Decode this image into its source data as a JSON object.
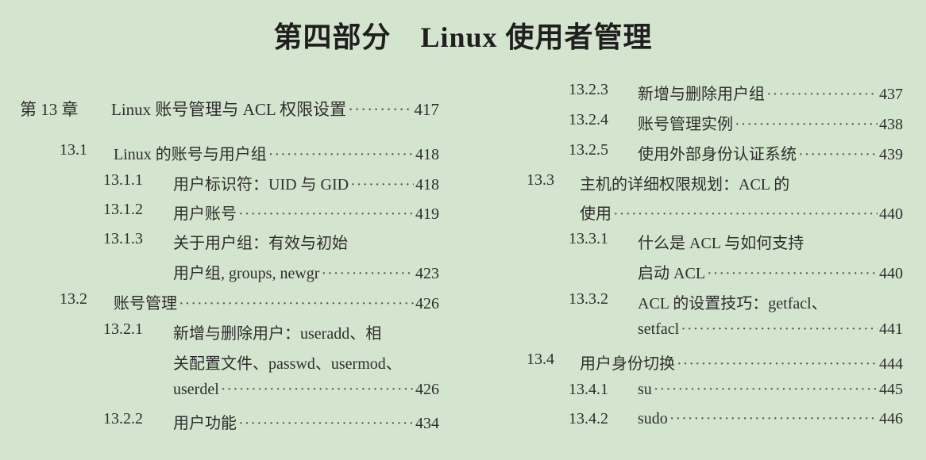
{
  "title": "第四部分　Linux 使用者管理",
  "left_column": [
    {
      "num": "第 13 章",
      "text": "Linux 账号管理与 ACL 权限设置",
      "page": "417",
      "level": 0
    },
    {
      "num": "13.1",
      "text": "Linux 的账号与用户组",
      "page": "418",
      "level": 1
    },
    {
      "num": "13.1.1",
      "text": "用户标识符：UID 与 GID",
      "page": "418",
      "level": 2
    },
    {
      "num": "13.1.2",
      "text": "用户账号",
      "page": "419",
      "level": 2
    },
    {
      "num": "13.1.3",
      "text": "关于用户组：有效与初始",
      "page": "",
      "level": 2
    },
    {
      "num": "",
      "text": "用户组, groups, newgr",
      "page": "423",
      "level": 2
    },
    {
      "num": "13.2",
      "text": "账号管理",
      "page": "426",
      "level": 1
    },
    {
      "num": "13.2.1",
      "text": "新增与删除用户：useradd、相",
      "page": "",
      "level": 2
    },
    {
      "num": "",
      "text": "关配置文件、passwd、usermod、",
      "page": "",
      "level": 2
    },
    {
      "num": "",
      "text": "userdel",
      "page": "426",
      "level": 2
    },
    {
      "num": "13.2.2",
      "text": "用户功能",
      "page": "434",
      "level": 2
    }
  ],
  "right_column": [
    {
      "num": "13.2.3",
      "text": "新增与删除用户组",
      "page": "437",
      "level": 2
    },
    {
      "num": "13.2.4",
      "text": "账号管理实例",
      "page": "438",
      "level": 2
    },
    {
      "num": "13.2.5",
      "text": "使用外部身份认证系统",
      "page": "439",
      "level": 2
    },
    {
      "num": "13.3",
      "text": "主机的详细权限规划：ACL 的",
      "page": "",
      "level": 1
    },
    {
      "num": "",
      "text": "使用",
      "page": "440",
      "level": 1
    },
    {
      "num": "13.3.1",
      "text": "什么是 ACL 与如何支持",
      "page": "",
      "level": 2
    },
    {
      "num": "",
      "text": "启动 ACL",
      "page": "440",
      "level": 2
    },
    {
      "num": "13.3.2",
      "text": "ACL 的设置技巧：getfacl、",
      "page": "",
      "level": 2
    },
    {
      "num": "",
      "text": "setfacl",
      "page": "441",
      "level": 2
    },
    {
      "num": "13.4",
      "text": "用户身份切换",
      "page": "444",
      "level": 1
    },
    {
      "num": "13.4.1",
      "text": "su",
      "page": "445",
      "level": 2
    },
    {
      "num": "13.4.2",
      "text": "sudo",
      "page": "446",
      "level": 2
    }
  ],
  "colors": {
    "background": "#d4e5cf",
    "text": "#2e2e2e"
  }
}
